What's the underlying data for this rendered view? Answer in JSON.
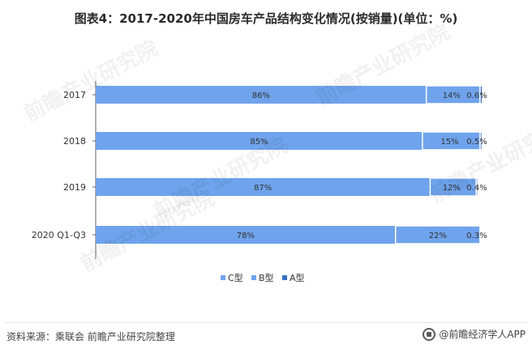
{
  "title": "图表4：2017-2020年中国房车产品结构变化情况(按销量)(单位：%)",
  "footer": {
    "source": "资料来源：乘联会 前瞻产业研究院整理",
    "brand": "@前瞻经济学人APP"
  },
  "watermark": {
    "text": "前瞻产业研究院"
  },
  "colors": {
    "C型": "#6fa3ec",
    "B型": "#6fa3ec",
    "A型": "#3a6fc4",
    "axis": "#666666",
    "label": "#333333"
  },
  "chart_data": {
    "type": "bar",
    "orientation": "horizontal",
    "stacked": true,
    "title": "图表4：2017-2020年中国房车产品结构变化情况(按销量)(单位：%)",
    "categories": [
      "2017",
      "2018",
      "2019",
      "2020 Q1-Q3"
    ],
    "series": [
      {
        "name": "C型",
        "values": [
          86,
          85,
          87,
          78
        ],
        "labels": [
          "86%",
          "85%",
          "87%",
          "78%"
        ]
      },
      {
        "name": "B型",
        "values": [
          14,
          15,
          12,
          22
        ],
        "labels": [
          "14%",
          "15%",
          "12%",
          "22%"
        ]
      },
      {
        "name": "A型",
        "values": [
          0.6,
          0.5,
          0.4,
          0.3
        ],
        "labels": [
          "0.6%",
          "0.5%",
          "0.4%",
          "0.3%"
        ]
      }
    ],
    "xlim": [
      0,
      100
    ],
    "grid": false,
    "legend": {
      "position": "bottom"
    }
  }
}
